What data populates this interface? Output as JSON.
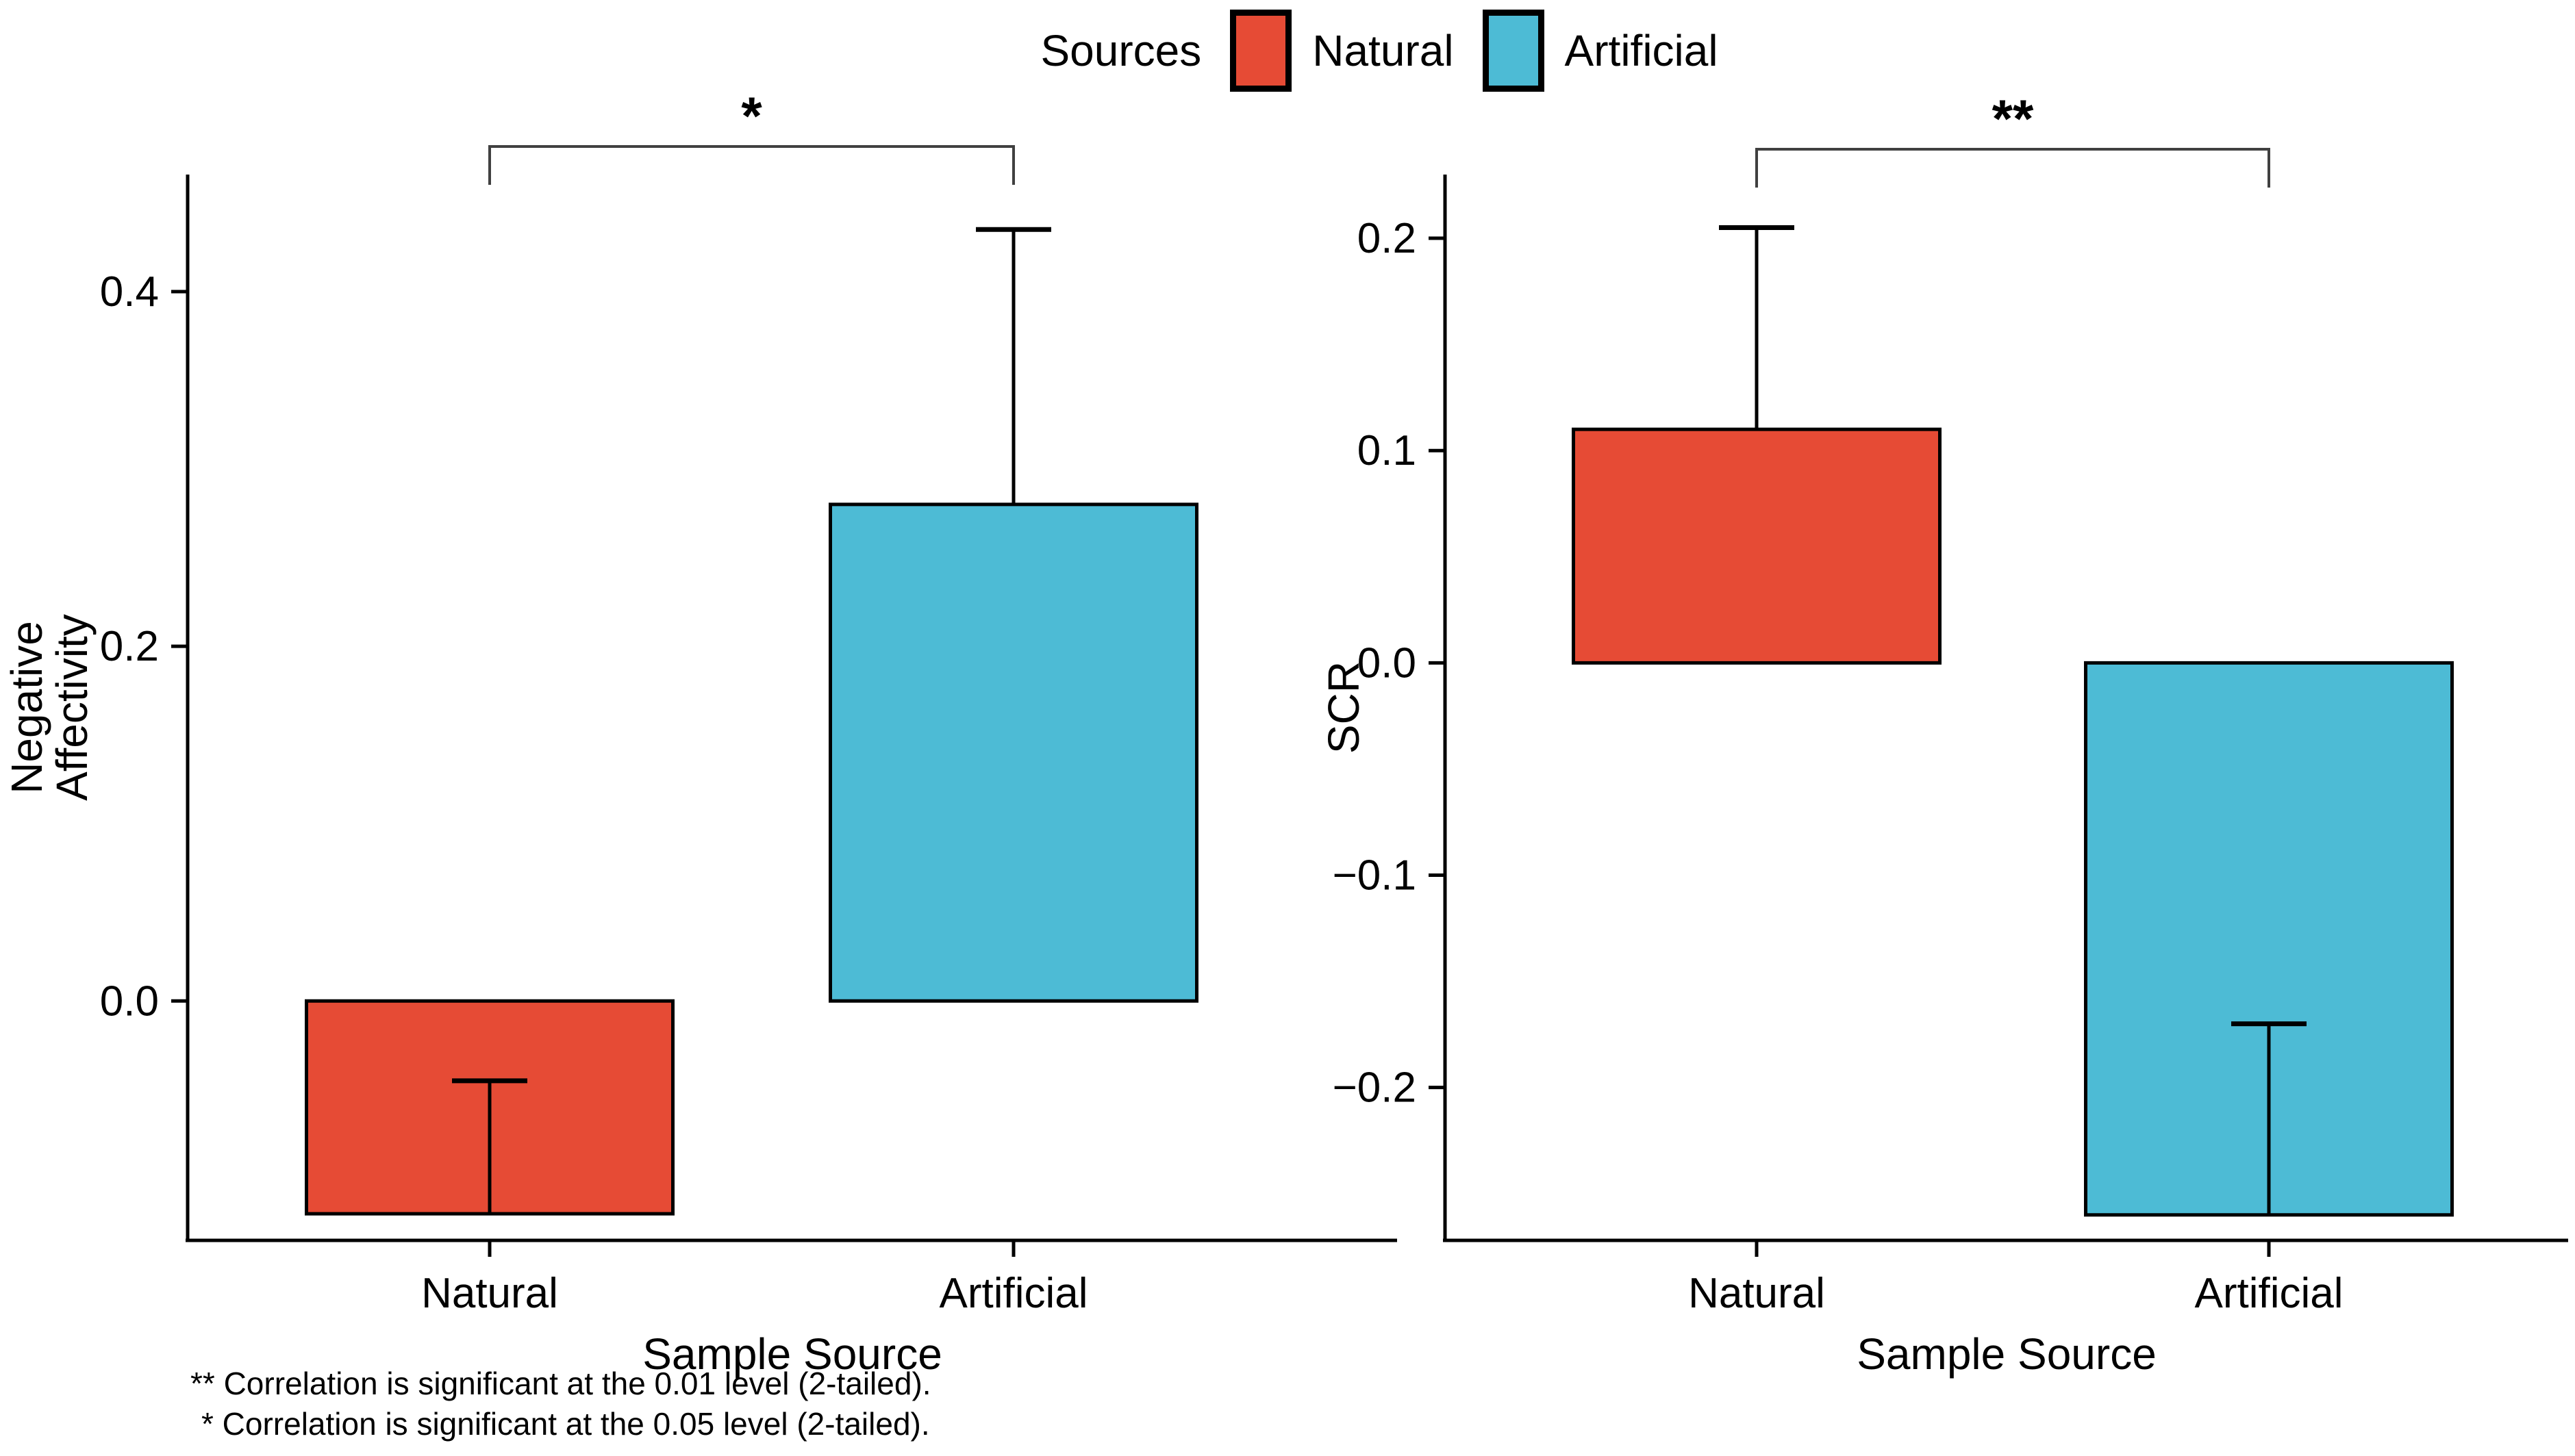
{
  "legend": {
    "title": "Sources",
    "items": [
      {
        "label": "Natural",
        "color": "#E64B35"
      },
      {
        "label": "Artificial",
        "color": "#4DBBD5"
      }
    ]
  },
  "footnotes": {
    "line1": "** Correlation is significant at the 0.01 level (2-tailed).",
    "line2": "* Correlation is significant at the 0.05 level (2-tailed)."
  },
  "chart_data": [
    {
      "type": "bar",
      "title": "",
      "ylabel": "Negative Affectivity",
      "ylabel_lines": [
        "Negative",
        "Affectivity"
      ],
      "xlabel": "Sample Source",
      "categories": [
        "Natural",
        "Artificial"
      ],
      "values": [
        -0.12,
        0.28
      ],
      "error_tops": [
        -0.045,
        0.435
      ],
      "colors": [
        "#E64B35",
        "#4DBBD5"
      ],
      "yticks": [
        0.4,
        0.2,
        0.0
      ],
      "ylim": [
        -0.135,
        0.466
      ],
      "grid": false,
      "significance": {
        "label": "*",
        "between": [
          "Natural",
          "Artificial"
        ]
      }
    },
    {
      "type": "bar",
      "title": "",
      "ylabel": "SCR",
      "ylabel_lines": [
        "SCR"
      ],
      "xlabel": "Sample Source",
      "categories": [
        "Natural",
        "Artificial"
      ],
      "values": [
        0.11,
        -0.26
      ],
      "error_tops": [
        0.205,
        -0.17
      ],
      "colors": [
        "#E64B35",
        "#4DBBD5"
      ],
      "yticks": [
        0.2,
        0.1,
        0.0,
        -0.1,
        -0.2
      ],
      "ylim": [
        -0.272,
        0.23
      ],
      "grid": false,
      "significance": {
        "label": "**",
        "between": [
          "Natural",
          "Artificial"
        ]
      }
    }
  ]
}
